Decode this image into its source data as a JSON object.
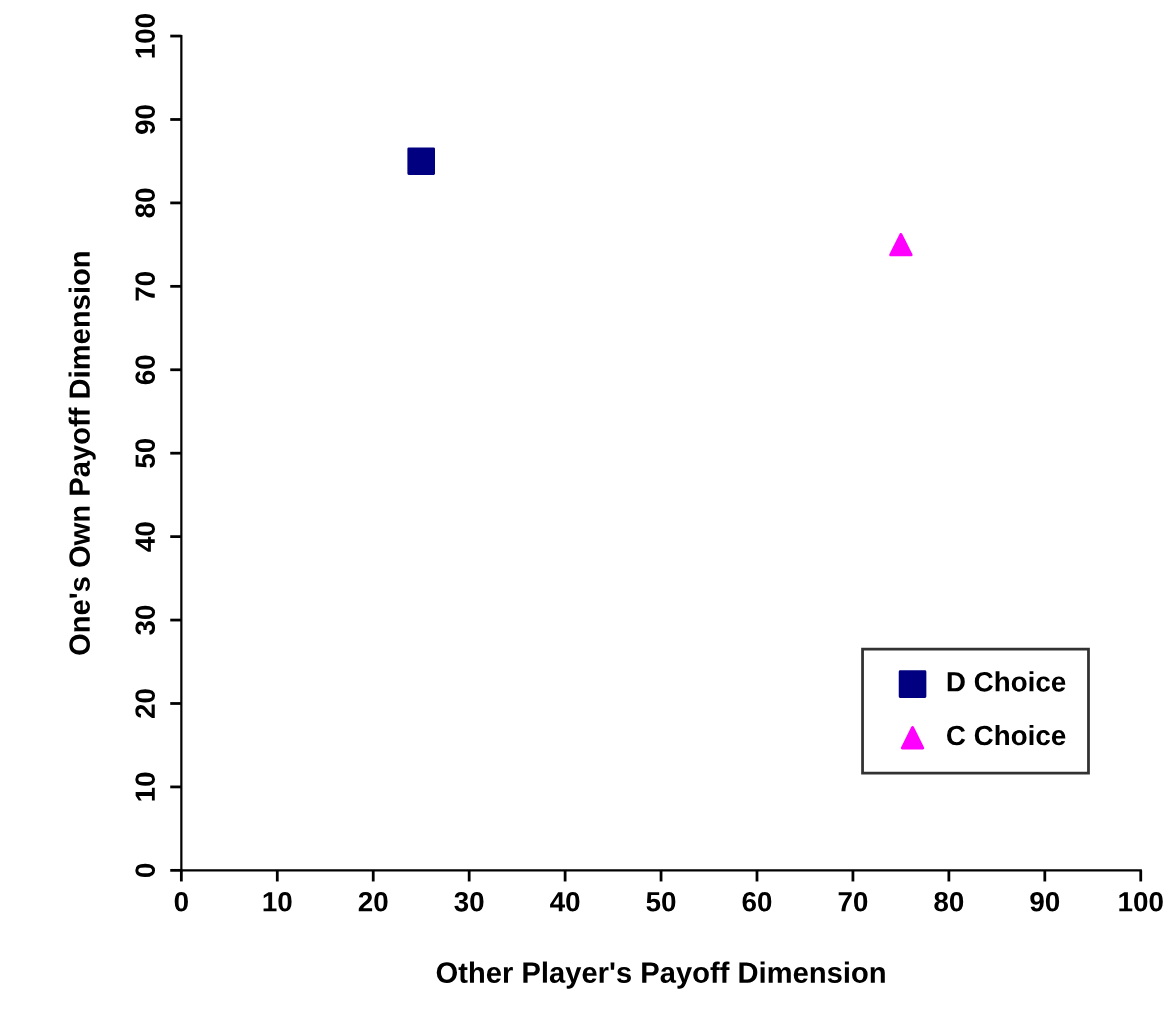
{
  "chart_data": {
    "type": "scatter",
    "xlabel": "Other Player's Payoff Dimension",
    "ylabel": "One's Own Payoff Dimension",
    "series": [
      {
        "name": "D Choice",
        "color": "#000080",
        "marker": "square",
        "x": [
          25
        ],
        "values": [
          85
        ]
      },
      {
        "name": "C Choice",
        "color": "#ff00ff",
        "marker": "triangle",
        "x": [
          75
        ],
        "values": [
          75
        ]
      }
    ],
    "xlim": [
      0,
      100
    ],
    "ylim": [
      0,
      100
    ],
    "xticks": [
      0,
      10,
      20,
      30,
      40,
      50,
      60,
      70,
      80,
      90,
      100
    ],
    "yticks": [
      0,
      10,
      20,
      30,
      40,
      50,
      60,
      70,
      80,
      90,
      100
    ],
    "grid": false,
    "legend": "bottom right"
  }
}
